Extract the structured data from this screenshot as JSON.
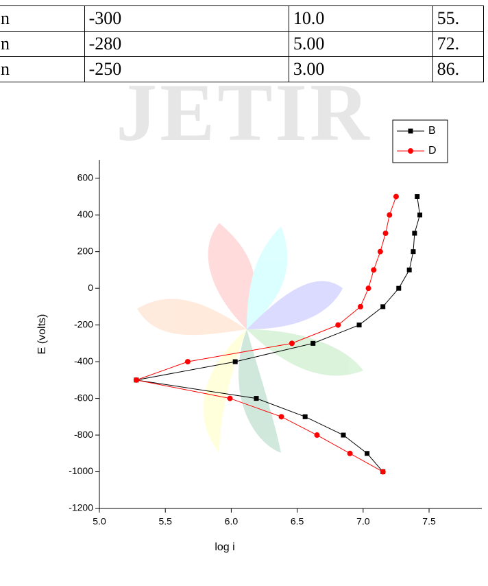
{
  "watermark": "JETIR",
  "table": {
    "rows": [
      [
        "n",
        "-300",
        "10.0",
        "55."
      ],
      [
        "n",
        "-280",
        "5.00",
        "72."
      ],
      [
        "n",
        "-250",
        "3.00",
        "86."
      ]
    ]
  },
  "chart_data": {
    "type": "line",
    "x_label": "log i",
    "y_label": "E (volts)",
    "xlim": [
      5.0,
      7.9
    ],
    "ylim": [
      -1200,
      700
    ],
    "xticks": [
      {
        "value": 5,
        "label": "5.0"
      },
      5.5,
      {
        "value": 6,
        "label": "6.0"
      },
      6.5,
      {
        "value": 7,
        "label": "7.0"
      },
      7.5
    ],
    "yticks": [
      600,
      400,
      200,
      0,
      -200,
      -400,
      -600,
      -800,
      -1000,
      -1200
    ],
    "legend": "top-right",
    "series": [
      {
        "name": "B",
        "color": "#000000",
        "marker": "square",
        "x": [
          7.41,
          7.43,
          7.39,
          7.38,
          7.35,
          7.27,
          7.15,
          6.97,
          6.62,
          6.03,
          5.28,
          6.19,
          6.56,
          6.85,
          7.03,
          7.15
        ],
        "values": [
          500,
          400,
          300,
          200,
          100,
          0,
          -100,
          -200,
          -300,
          -400,
          -500,
          -600,
          -700,
          -800,
          -900,
          -1000
        ]
      },
      {
        "name": "D",
        "color": "#ff0000",
        "marker": "circle",
        "x": [
          7.25,
          7.2,
          7.17,
          7.13,
          7.08,
          7.04,
          6.98,
          6.81,
          6.46,
          5.67,
          5.28,
          5.99,
          6.38,
          6.65,
          6.9,
          7.15
        ],
        "values": [
          500,
          400,
          300,
          200,
          100,
          0,
          -100,
          -200,
          -300,
          -400,
          -500,
          -600,
          -700,
          -800,
          -900,
          -1000
        ]
      }
    ]
  }
}
